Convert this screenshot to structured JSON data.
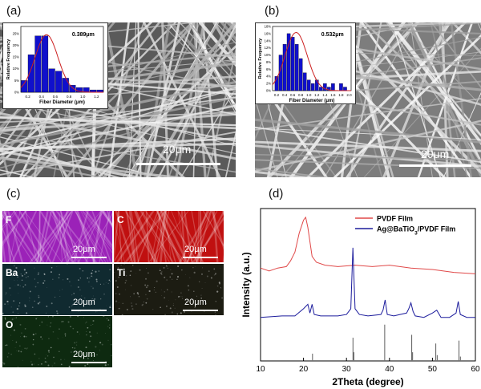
{
  "panels": {
    "a": {
      "label": "(a)",
      "scale_text": "20μm",
      "inset": {
        "annotation": "0.389μm",
        "xlabel": "Fiber Diameter (μm)",
        "ylabel": "Relative Frequency",
        "x_ticks": [
          "0.2",
          "0.4",
          "0.6",
          "0.8",
          "1.0",
          "1.2"
        ],
        "y_ticks": [
          "0%",
          "5%",
          "10%",
          "15%",
          "20%",
          "25%"
        ]
      }
    },
    "b": {
      "label": "(b)",
      "scale_text": "20μm",
      "inset": {
        "annotation": "0.532μm",
        "xlabel": "Fiber Diameter (μm)",
        "ylabel": "Relative Frequency",
        "x_ticks": [
          "0.2",
          "0.4",
          "0.6",
          "0.8",
          "1.0",
          "1.2",
          "1.4",
          "1.6",
          "1.8",
          "2.0"
        ],
        "y_ticks": [
          "0%",
          "2%",
          "4%",
          "6%",
          "8%",
          "10%",
          "12%",
          "14%",
          "16%",
          "18%"
        ]
      }
    },
    "c": {
      "label": "(c)",
      "maps": [
        {
          "element": "F",
          "scale": "20μm",
          "color": "#9b22b8"
        },
        {
          "element": "C",
          "scale": "20μm",
          "color": "#c01010"
        },
        {
          "element": "Ba",
          "scale": "20μm",
          "color": "#102a30"
        },
        {
          "element": "Ti",
          "scale": "20μm",
          "color": "#1c1c12"
        },
        {
          "element": "O",
          "scale": "20μm",
          "color": "#0e2a10"
        }
      ]
    },
    "d": {
      "label": "(d)",
      "xlabel": "2Theta (degree)",
      "ylabel": "Intensity (a.u.)",
      "x_ticks": [
        "10",
        "20",
        "30",
        "40",
        "50",
        "60"
      ],
      "legend": [
        {
          "text": "PVDF Film",
          "color": "#e04848"
        },
        {
          "text_parts": [
            "Ag@BaTiO",
            "3",
            "/PVDF Film"
          ],
          "color": "#1c1c9c"
        }
      ]
    }
  },
  "chart_data": [
    {
      "type": "bar",
      "panel": "a",
      "x": [
        0.15,
        0.25,
        0.35,
        0.45,
        0.55,
        0.65,
        0.75,
        0.85,
        0.95,
        1.05,
        1.15,
        1.25
      ],
      "values": [
        5,
        16,
        24,
        24,
        10,
        9,
        6,
        3,
        2,
        2,
        1,
        1
      ],
      "fit": "gaussian",
      "xlabel": "Fiber Diameter (μm)",
      "ylabel": "Relative Frequency",
      "ylim": [
        0,
        28
      ],
      "xlim": [
        0.1,
        1.3
      ],
      "annotation": "0.389μm",
      "bar_color": "#1010cc",
      "fit_color": "#cc2020"
    },
    {
      "type": "bar",
      "panel": "b",
      "x": [
        0.2,
        0.3,
        0.4,
        0.5,
        0.6,
        0.7,
        0.8,
        0.9,
        1.0,
        1.1,
        1.2,
        1.3,
        1.4,
        1.5,
        1.6,
        1.7,
        1.8,
        1.9
      ],
      "values": [
        4,
        10,
        13,
        16,
        15,
        13,
        9,
        5,
        3,
        2,
        3,
        1,
        2,
        1,
        2,
        0,
        2,
        1
      ],
      "fit": "gaussian",
      "xlabel": "Fiber Diameter (μm)",
      "ylabel": "Relative Frequency",
      "ylim": [
        0,
        18
      ],
      "xlim": [
        0.1,
        2.05
      ],
      "annotation": "0.532μm",
      "bar_color": "#1010cc",
      "fit_color": "#cc2020"
    },
    {
      "type": "line",
      "panel": "d",
      "xlabel": "2Theta (degree)",
      "ylabel": "Intensity (a.u.)",
      "xlim": [
        10,
        60
      ],
      "series": [
        {
          "name": "PVDF Film",
          "color": "#e04848",
          "x": [
            10,
            12,
            14,
            16,
            17,
            18,
            19,
            20,
            20.5,
            21,
            22,
            23,
            25,
            28,
            32,
            36,
            40,
            45,
            50,
            55,
            60
          ],
          "y": [
            6.4,
            6.2,
            6.4,
            6.5,
            6.9,
            7.5,
            8.8,
            9.7,
            9.9,
            9.2,
            7.2,
            6.8,
            6.6,
            6.5,
            6.6,
            6.5,
            6.6,
            6.4,
            6.3,
            6.1,
            6.0
          ]
        },
        {
          "name": "Ag@BaTiO3/PVDF Film",
          "color": "#1c1c9c",
          "x": [
            10,
            15,
            18,
            20,
            21,
            21.5,
            22,
            22.5,
            24,
            28,
            30,
            31,
            31.5,
            32,
            33,
            35,
            38,
            38.5,
            39,
            39.5,
            41,
            44,
            44.5,
            45,
            45.5,
            46,
            48,
            50,
            51,
            52,
            54,
            55.5,
            56,
            56.5,
            58,
            60
          ],
          "y": [
            3.0,
            3.1,
            3.1,
            3.6,
            3.9,
            3.3,
            3.9,
            3.2,
            3.1,
            3.1,
            3.2,
            3.6,
            7.8,
            3.6,
            3.2,
            3.1,
            3.2,
            3.5,
            4.2,
            3.2,
            3.1,
            3.3,
            3.6,
            4.0,
            3.4,
            3.1,
            3.0,
            3.3,
            3.5,
            3.0,
            3.0,
            3.3,
            4.1,
            3.2,
            3.0,
            3.0
          ]
        }
      ],
      "reference_sticks": {
        "color": "#333333",
        "x": [
          22.1,
          31.5,
          31.7,
          38.9,
          45.2,
          45.4,
          50.8,
          51.1,
          56.2,
          56.5
        ],
        "heights": [
          0.5,
          1.6,
          0.6,
          2.5,
          1.8,
          0.6,
          1.2,
          0.4,
          1.4,
          0.3
        ]
      }
    }
  ]
}
